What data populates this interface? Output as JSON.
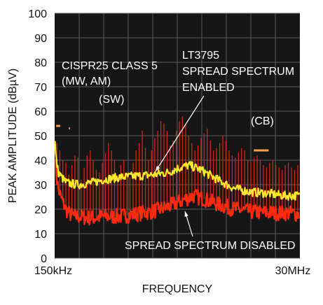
{
  "chart_data": {
    "type": "line",
    "title": "",
    "xlabel": "FREQUENCY",
    "ylabel": "PEAK AMPLITUDE (dBµV)",
    "ylim": [
      0,
      100
    ],
    "y_ticks": [
      0,
      10,
      20,
      30,
      40,
      50,
      60,
      70,
      80,
      90,
      100
    ],
    "x_ticks": [
      "150kHz",
      "30MHz"
    ],
    "xlim_mhz": [
      0.15,
      30
    ],
    "x_scale": "linear",
    "grid": true,
    "colors": {
      "background": "#161616",
      "grid": "#5a5a5a",
      "disabled_peaks": "#d02818",
      "disabled_floor": "#ff2a10",
      "enabled": "#ffe830",
      "limit": "#f4a050",
      "text": "#ffffff"
    },
    "series": [
      {
        "label": "LT3795 SPREAD SPECTRUM ENABLED",
        "x_mhz": [
          0.15,
          0.3,
          0.6,
          1.0,
          1.5,
          2.0,
          3.0,
          4.0,
          5.0,
          6.0,
          8.0,
          10.0,
          12.0,
          14.0,
          15.0,
          16.5,
          18.0,
          20.0,
          22.0,
          24.0,
          26.0,
          28.0,
          30.0
        ],
        "y": [
          50,
          41,
          35,
          33,
          31,
          30.5,
          30,
          30.5,
          31,
          32,
          33,
          33.5,
          34,
          35,
          36.5,
          38,
          36,
          32,
          28.5,
          27,
          26.5,
          25.5,
          25.5
        ]
      },
      {
        "label": "SPREAD SPECTRUM DISABLED",
        "x_mhz": [
          0.15,
          0.3,
          0.6,
          1.0,
          1.5,
          2.0,
          2.5,
          3.0,
          4.0,
          5.0,
          6.0,
          7.0,
          8.0,
          10.0,
          12.0,
          14.0,
          16.0,
          17.0,
          18.5,
          20.0,
          22.0,
          24.0,
          26.0,
          28.0,
          30.0
        ],
        "y": [
          46,
          36,
          28,
          24,
          20,
          18,
          17,
          17,
          16.5,
          16.5,
          17,
          17,
          17,
          18,
          19,
          21,
          24,
          25.5,
          24,
          22,
          20,
          19,
          18.5,
          18.5,
          18
        ]
      }
    ],
    "disabled_peaks": {
      "x_mhz": [
        0.42,
        0.78,
        1.15,
        1.52,
        1.88,
        2.25,
        2.62,
        3.0,
        3.37,
        3.74,
        4.1,
        4.48,
        4.85,
        5.22,
        5.6,
        5.96,
        6.33,
        6.7,
        7.07,
        7.44,
        7.82,
        8.2,
        8.57,
        8.95,
        9.32,
        9.7,
        10.06,
        10.44,
        10.82,
        11.2,
        11.57,
        11.95,
        12.33,
        12.7,
        13.08,
        13.45,
        13.83,
        14.21,
        14.58,
        14.96,
        15.34,
        15.71,
        16.1,
        16.47,
        16.85,
        17.22,
        17.6,
        17.97,
        18.35,
        18.72,
        19.1,
        19.48,
        19.86,
        20.24,
        20.62,
        21.0,
        21.38,
        21.76,
        22.14,
        22.52,
        22.9,
        23.28,
        23.66,
        24.04,
        24.42,
        24.8,
        25.18,
        25.56,
        25.94,
        26.32,
        26.7,
        27.08,
        27.46,
        27.84,
        28.22,
        28.6,
        28.98,
        29.36,
        29.74
      ],
      "y": [
        47,
        44,
        40,
        39,
        34,
        38,
        42,
        41,
        32,
        37,
        42,
        44,
        40,
        36,
        35,
        39,
        43,
        47,
        44,
        40,
        34,
        38,
        40,
        35,
        33,
        39,
        44,
        47,
        52,
        45,
        40,
        44,
        49,
        52,
        56,
        55,
        52,
        46,
        48,
        52,
        56,
        58,
        55,
        50,
        47,
        44,
        46,
        49,
        51,
        53,
        48,
        44,
        45,
        47,
        50,
        48,
        44,
        42,
        41,
        43,
        45,
        44,
        40,
        39,
        41,
        42,
        40,
        38,
        37,
        39,
        40,
        38,
        37,
        36,
        38,
        39,
        37,
        36,
        38
      ]
    },
    "limits": [
      {
        "label": "CISPR25 CLASS 5 (MW, AM)",
        "x_mhz": [
          0.33,
          0.83
        ],
        "y": 54
      },
      {
        "label": "(SW)",
        "x_mhz": [
          1.88,
          2.02
        ],
        "y": 53
      },
      {
        "label": "(CB)",
        "x_mhz": [
          24.4,
          26.2
        ],
        "y": 44
      }
    ],
    "annotations": {
      "cispr_line1": "CISPR25 CLASS 5",
      "cispr_line2": "(MW, AM)",
      "sw": "(SW)",
      "cb": "(CB)",
      "enabled_line1": "LT3795",
      "enabled_line2": "SPREAD SPECTRUM",
      "enabled_line3": "ENABLED",
      "disabled": "SPREAD SPECTRUM DISABLED"
    }
  }
}
